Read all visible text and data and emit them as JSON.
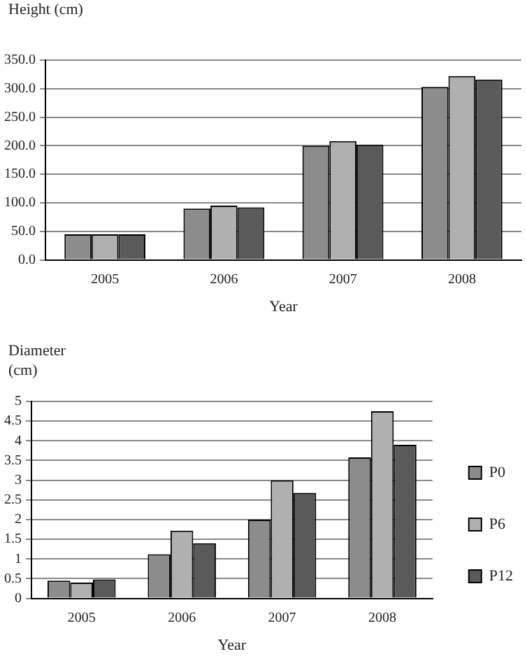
{
  "chart_data": [
    {
      "type": "bar",
      "ylabel": "Height (cm)",
      "xlabel": "Year",
      "categories": [
        "2005",
        "2006",
        "2007",
        "2008"
      ],
      "series": [
        {
          "color": "#8c8c8c",
          "values": [
            45,
            90,
            200,
            303
          ]
        },
        {
          "color": "#b0b0b0",
          "values": [
            45,
            95,
            208,
            322
          ]
        },
        {
          "color": "#5a5a5a",
          "values": [
            45,
            92,
            202,
            316
          ]
        }
      ],
      "ylim": [
        0,
        350
      ],
      "yticks": [
        {
          "value": 0,
          "label": "0.0"
        },
        {
          "value": 50,
          "label": "50.0"
        },
        {
          "value": 100,
          "label": "100.0"
        },
        {
          "value": 150,
          "label": "150.0"
        },
        {
          "value": 200,
          "label": "200.0"
        },
        {
          "value": 250,
          "label": "250.0"
        },
        {
          "value": 300,
          "label": "300.0"
        },
        {
          "value": 350,
          "label": "350.0"
        }
      ],
      "grid": "y"
    },
    {
      "type": "bar",
      "ylabel": "Diameter (cm)",
      "xlabel": "Year",
      "categories": [
        "2005",
        "2006",
        "2007",
        "2008"
      ],
      "series": [
        {
          "name": "P0",
          "color": "#8c8c8c",
          "values": [
            0.45,
            1.12,
            2.0,
            3.58
          ]
        },
        {
          "name": "P6",
          "color": "#b0b0b0",
          "values": [
            0.4,
            1.72,
            3.0,
            4.75
          ]
        },
        {
          "name": "P12",
          "color": "#5a5a5a",
          "values": [
            0.48,
            1.4,
            2.68,
            3.9
          ]
        }
      ],
      "ylim": [
        0,
        5
      ],
      "yticks": [
        0,
        0.5,
        1,
        1.5,
        2,
        2.5,
        3,
        3.5,
        4,
        4.5,
        5
      ],
      "grid": "y",
      "legend": "right"
    }
  ]
}
